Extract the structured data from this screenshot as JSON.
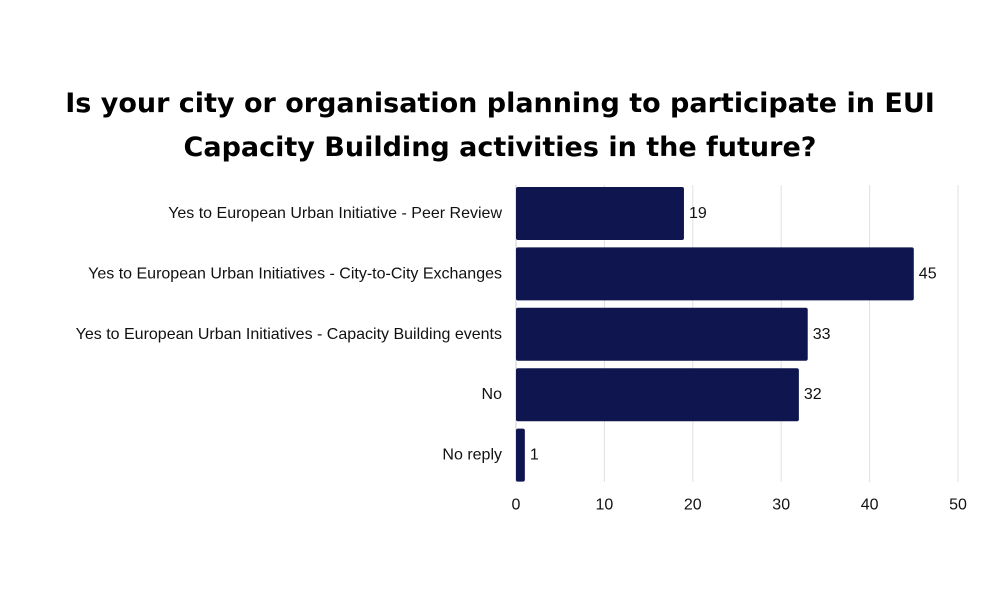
{
  "chart_data": {
    "type": "bar",
    "orientation": "horizontal",
    "title": "Is your city or organisation planning to participate in EUI Capacity Building activities in the future?",
    "categories": [
      "Yes to European Urban Initiative - Peer Review",
      "Yes to European Urban Initiatives - City-to-City Exchanges",
      "Yes to European Urban Initiatives - Capacity Building events",
      "No",
      "No reply"
    ],
    "values": [
      19,
      45,
      33,
      32,
      1
    ],
    "xlim": [
      0,
      50
    ],
    "xticks": [
      0,
      10,
      20,
      30,
      40,
      50
    ],
    "xlabel": "",
    "ylabel": "",
    "grid": "vertical",
    "data_labels": true,
    "bar_color": "#0f154f",
    "grid_color": "#e0e0e0"
  }
}
